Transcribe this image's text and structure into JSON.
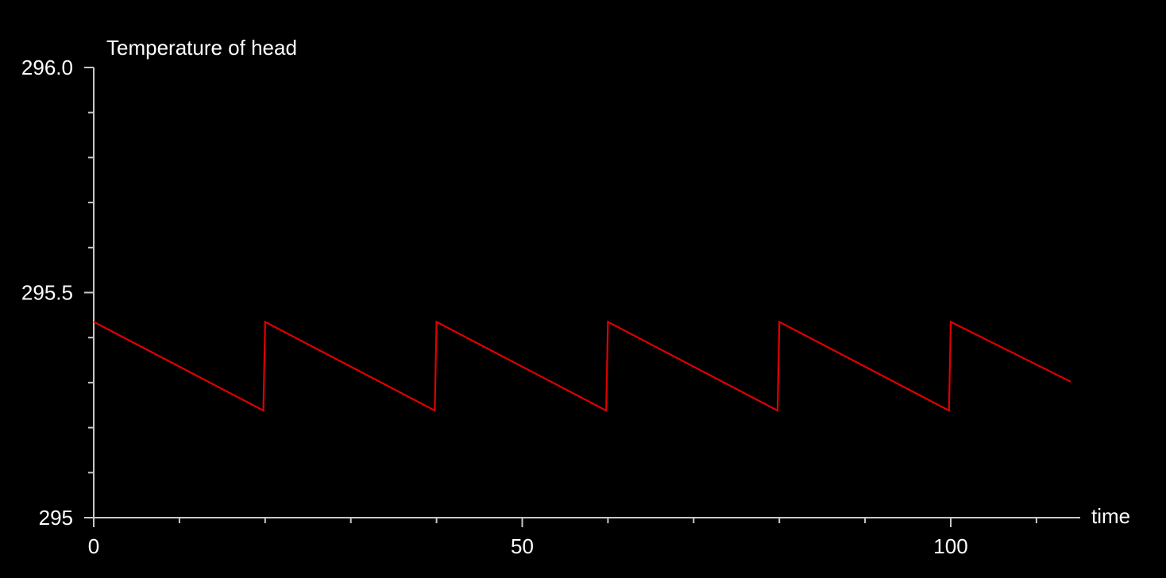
{
  "chart_data": {
    "type": "line",
    "title": "Temperature of head",
    "xlabel": "time",
    "ylabel": "",
    "xlim": [
      0,
      115
    ],
    "ylim": [
      295,
      296
    ],
    "x_ticks_major": [
      0,
      50,
      100
    ],
    "x_tick_labels": [
      "0",
      "50",
      "100"
    ],
    "x_ticks_minor": [
      10,
      20,
      30,
      40,
      60,
      70,
      80,
      90,
      110
    ],
    "y_ticks_major": [
      295,
      295.5,
      296
    ],
    "y_tick_labels": [
      "295",
      "295.5",
      "296.0"
    ],
    "y_ticks_minor": [
      295.1,
      295.2,
      295.3,
      295.4,
      295.6,
      295.7,
      295.8,
      295.9
    ],
    "grid": false,
    "background_color": "#000000",
    "axis_color": "#c8c8c8",
    "text_color": "#ffffff",
    "series": [
      {
        "color": "#e00000",
        "x": [
          0,
          19.8,
          20,
          39.8,
          40,
          59.8,
          60,
          79.8,
          80,
          99.8,
          100,
          114
        ],
        "y": [
          295.435,
          295.238,
          295.435,
          295.238,
          295.435,
          295.238,
          295.435,
          295.238,
          295.435,
          295.238,
          295.435,
          295.302
        ]
      }
    ]
  }
}
